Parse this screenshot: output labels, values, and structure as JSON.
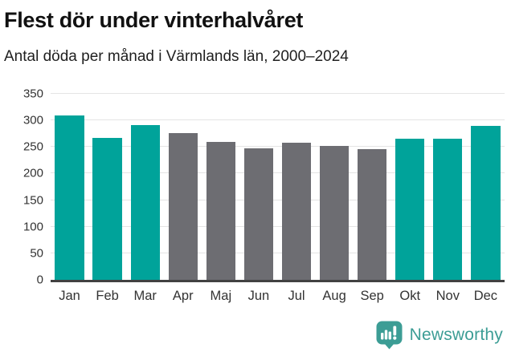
{
  "title": "Flest dör under vinterhalvåret",
  "subtitle": "Antal döda per månad i Värmlands län, 2000–2024",
  "footer": {
    "brand": "Newsworthy",
    "logo_icon": "newsworthy-bar-chart-bubble-icon",
    "brand_color": "#3c9d95"
  },
  "colors": {
    "winter_bar": "#00a39a",
    "summer_bar": "#6d6d72",
    "gridline": "#e4e4e4",
    "axis_line": "#414141",
    "tick_text": "#333333",
    "title_text": "#111111"
  },
  "chart_data": {
    "type": "bar",
    "title": "Flest dör under vinterhalvåret",
    "subtitle": "Antal döda per månad i Värmlands län, 2000–2024",
    "categories": [
      "Jan",
      "Feb",
      "Mar",
      "Apr",
      "Maj",
      "Jun",
      "Jul",
      "Aug",
      "Sep",
      "Okt",
      "Nov",
      "Dec"
    ],
    "values": [
      310,
      267,
      291,
      276,
      259,
      248,
      258,
      252,
      246,
      265,
      266,
      290
    ],
    "bar_colors": [
      "#00a39a",
      "#00a39a",
      "#00a39a",
      "#6d6d72",
      "#6d6d72",
      "#6d6d72",
      "#6d6d72",
      "#6d6d72",
      "#6d6d72",
      "#00a39a",
      "#00a39a",
      "#00a39a"
    ],
    "xlabel": "",
    "ylabel": "",
    "ylim": [
      0,
      350
    ],
    "yticks": [
      0,
      50,
      100,
      150,
      200,
      250,
      300,
      350
    ],
    "grid": true,
    "legend": false,
    "legend_position": "none"
  }
}
